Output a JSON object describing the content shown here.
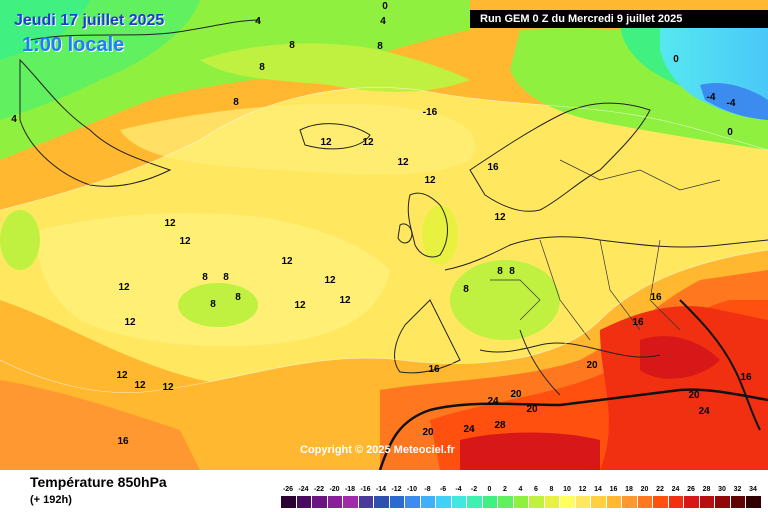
{
  "header": {
    "date_line": "Jeudi 17 juillet 2025",
    "time_line": "1:00 locale",
    "run_info": "Run GEM 0 Z du Mercredi 9 juillet 2025",
    "copyright": "Copyright © 2025 Meteociel.fr"
  },
  "footer": {
    "title": "Température 850hPa",
    "subtitle": "(+ 192h)"
  },
  "legend": {
    "values": [
      "-26",
      "-24",
      "-22",
      "-20",
      "-18",
      "-16",
      "-14",
      "-12",
      "-10",
      "-8",
      "-6",
      "-4",
      "-2",
      "0",
      "2",
      "4",
      "6",
      "8",
      "10",
      "12",
      "14",
      "16",
      "18",
      "20",
      "22",
      "24",
      "26",
      "28",
      "30",
      "32",
      "34"
    ],
    "colors": [
      "#2a0033",
      "#4a0a5e",
      "#6a1580",
      "#8a2098",
      "#a02aa8",
      "#4a3a9a",
      "#3050b0",
      "#2c6ad0",
      "#3c8cf0",
      "#40b0f8",
      "#40d0f8",
      "#40e8e0",
      "#40f0b0",
      "#40f080",
      "#60f060",
      "#90f040",
      "#c0f040",
      "#e8f040",
      "#ffff60",
      "#ffe860",
      "#ffd040",
      "#ffb830",
      "#ff9830",
      "#ff7820",
      "#ff5010",
      "#f03010",
      "#d81818",
      "#b81010",
      "#900808",
      "#600404",
      "#300000"
    ]
  },
  "map_labels": [
    {
      "t": "4"
    },
    {
      "t": "4"
    },
    {
      "t": "0"
    },
    {
      "t": "4"
    },
    {
      "t": "8"
    },
    {
      "t": "8"
    },
    {
      "t": "8"
    },
    {
      "t": "8"
    },
    {
      "t": "-16"
    },
    {
      "t": "12"
    },
    {
      "t": "12"
    },
    {
      "t": "12"
    },
    {
      "t": "12"
    },
    {
      "t": "16"
    },
    {
      "t": "12"
    },
    {
      "t": "12"
    },
    {
      "t": "12"
    },
    {
      "t": "12"
    },
    {
      "t": "12"
    },
    {
      "t": "8"
    },
    {
      "t": "8"
    },
    {
      "t": "8"
    },
    {
      "t": "8"
    },
    {
      "t": "12"
    },
    {
      "t": "12"
    },
    {
      "t": "12"
    },
    {
      "t": "12"
    },
    {
      "t": "8"
    },
    {
      "t": "8"
    },
    {
      "t": "8"
    },
    {
      "t": "16"
    },
    {
      "t": "16"
    },
    {
      "t": "20"
    },
    {
      "t": "24"
    },
    {
      "t": "20"
    },
    {
      "t": "28"
    },
    {
      "t": "20"
    },
    {
      "t": "24"
    },
    {
      "t": "20"
    },
    {
      "t": "20"
    },
    {
      "t": "24"
    },
    {
      "t": "16"
    },
    {
      "t": "12"
    },
    {
      "t": "12"
    },
    {
      "t": "12"
    },
    {
      "t": "16"
    },
    {
      "t": "16"
    },
    {
      "t": "0"
    },
    {
      "t": "-4"
    },
    {
      "t": "0"
    },
    {
      "t": "-4"
    }
  ]
}
